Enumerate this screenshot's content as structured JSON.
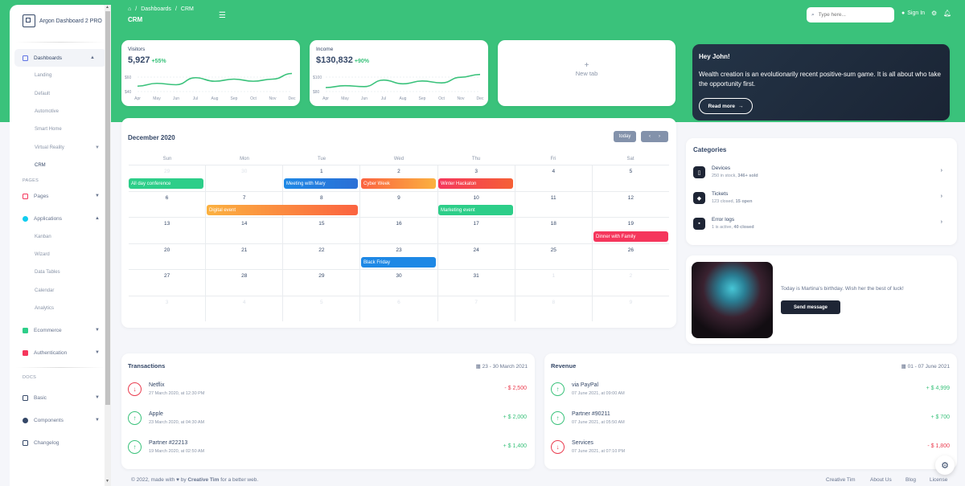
{
  "brand": "Argon Dashboard 2 PRO",
  "sidebar": {
    "dashboards": "Dashboards",
    "dash_sub": [
      "Landing",
      "Default",
      "Automotive",
      "Smart Home",
      "Virtual Reality",
      "CRM"
    ],
    "pages_section": "PAGES",
    "pages": "Pages",
    "applications": "Applications",
    "app_sub": [
      "Kanban",
      "Wizard",
      "Data Tables",
      "Calendar",
      "Analytics"
    ],
    "ecommerce": "Ecommerce",
    "authentication": "Authentication",
    "docs_section": "DOCS",
    "basic": "Basic",
    "components": "Components",
    "changelog": "Changelog"
  },
  "navbar": {
    "crumb1": "Dashboards",
    "crumb_sep": "/",
    "crumb2": "CRM",
    "title": "CRM",
    "search_placeholder": "Type here...",
    "signin": "Sign In"
  },
  "visitors": {
    "label": "Visitors",
    "value": "5,927",
    "pct": "+55%",
    "yticks": [
      "$60",
      "$40"
    ],
    "months": [
      "Apr",
      "May",
      "Jun",
      "Jul",
      "Aug",
      "Sep",
      "Oct",
      "Nov",
      "Dec"
    ]
  },
  "income": {
    "label": "Income",
    "value": "$130,832",
    "pct": "+90%",
    "yticks": [
      "$100",
      "$80"
    ],
    "months": [
      "Apr",
      "May",
      "Jun",
      "Jul",
      "Aug",
      "Sep",
      "Oct",
      "Nov",
      "Dec"
    ]
  },
  "newtab": {
    "plus": "+",
    "label": "New tab"
  },
  "chart_data": [
    {
      "type": "line",
      "categories": [
        "Apr",
        "May",
        "Jun",
        "Jul",
        "Aug",
        "Sep",
        "Oct",
        "Nov",
        "Dec"
      ],
      "series": [
        {
          "values": [
            40,
            44,
            42,
            52,
            47,
            50,
            47,
            50,
            58
          ]
        }
      ]
    },
    {
      "type": "line",
      "categories": [
        "Apr",
        "May",
        "Jun",
        "Jul",
        "Aug",
        "Sep",
        "Oct",
        "Nov",
        "Dec"
      ],
      "series": [
        {
          "values": [
            82,
            84,
            83,
            90,
            86,
            89,
            87,
            93,
            96
          ]
        }
      ]
    }
  ],
  "hero": {
    "title": "Hey John!",
    "text": "Wealth creation is an evolutionarily recent positive-sum game. It is all about who take the opportunity first.",
    "button": "Read more"
  },
  "calendar": {
    "title": "December 2020",
    "today": "today",
    "days": [
      "Sun",
      "Mon",
      "Tue",
      "Wed",
      "Thu",
      "Fri",
      "Sat"
    ],
    "weeks": [
      [
        "29",
        "30",
        "1",
        "2",
        "3",
        "4",
        "5"
      ],
      [
        "6",
        "7",
        "8",
        "9",
        "10",
        "11",
        "12"
      ],
      [
        "13",
        "14",
        "15",
        "16",
        "17",
        "18",
        "19"
      ],
      [
        "20",
        "21",
        "22",
        "23",
        "24",
        "25",
        "26"
      ],
      [
        "27",
        "28",
        "29",
        "30",
        "31",
        "1",
        "2"
      ],
      [
        "3",
        "4",
        "5",
        "6",
        "7",
        "8",
        "9"
      ]
    ],
    "events": {
      "e1": "All day conference",
      "e2": "Meeting with Mary",
      "e3": "Cyber Week",
      "e4": "Winter Hackaton",
      "e5": "Digital event",
      "e6": "Marketing event",
      "e7": "Dinner with Family",
      "e8": "Black Friday"
    }
  },
  "categories": {
    "title": "Categories",
    "devices": {
      "name": "Devices",
      "desc_a": "250 in stock, ",
      "desc_b": "346+ sold"
    },
    "tickets": {
      "name": "Tickets",
      "desc_a": "123 closed, ",
      "desc_b": "15 open"
    },
    "errors": {
      "name": "Error logs",
      "desc_a": "1 is active, ",
      "desc_b": "40 closed"
    }
  },
  "birthday": {
    "text": "Today is Martina's birthday. Wish her the best of luck!",
    "button": "Send message"
  },
  "transactions": {
    "title": "Transactions",
    "range": "23 - 30 March 2021",
    "rows": [
      {
        "name": "Netflix",
        "date": "27 March 2020, at 12:30 PM",
        "amount": "- $ 2,500"
      },
      {
        "name": "Apple",
        "date": "23 March 2020, at 04:30 AM",
        "amount": "+ $ 2,000"
      },
      {
        "name": "Partner #22213",
        "date": "19 March 2020, at 02:50 AM",
        "amount": "+ $ 1,400"
      }
    ]
  },
  "revenue": {
    "title": "Revenue",
    "range": "01 - 07 June 2021",
    "rows": [
      {
        "name": "via PayPal",
        "date": "07 June 2021, at 09:00 AM",
        "amount": "+ $ 4,999"
      },
      {
        "name": "Partner #90211",
        "date": "07 June 2021, at 05:50 AM",
        "amount": "+ $ 700"
      },
      {
        "name": "Services",
        "date": "07 June 2021, at 07:10 PM",
        "amount": "- $ 1,800"
      }
    ]
  },
  "footer": {
    "copy_a": "© 2022, made with",
    "copy_b": "by",
    "author": "Creative Tim",
    "copy_c": "for a better web.",
    "links": [
      "Creative Tim",
      "About Us",
      "Blog",
      "License"
    ]
  }
}
